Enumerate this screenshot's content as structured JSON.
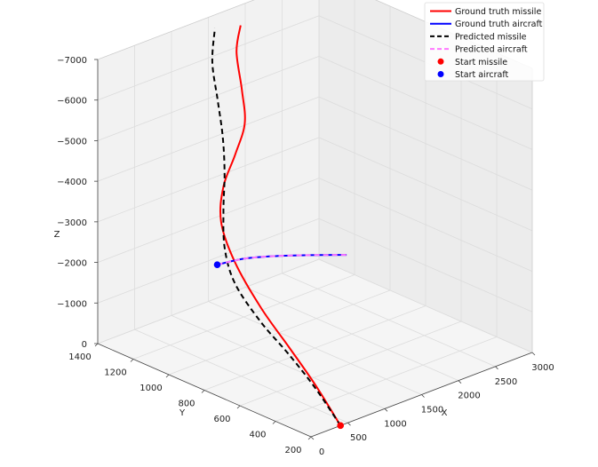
{
  "chart_data": {
    "type": "line",
    "subtype": "3d-trajectory",
    "title": "",
    "axes": {
      "x": {
        "label": "X",
        "ticks": [
          0,
          500,
          1000,
          1500,
          2000,
          2500,
          3000
        ],
        "range": [
          0,
          3000
        ]
      },
      "y": {
        "label": "Y",
        "ticks": [
          200,
          400,
          600,
          800,
          1000,
          1200,
          1400
        ],
        "range": [
          200,
          1400
        ]
      },
      "z": {
        "label": "Z",
        "ticks": [
          0,
          -1000,
          -2000,
          -3000,
          -4000,
          -5000,
          -6000,
          -7000
        ],
        "tick_labels": [
          "0",
          "−1000",
          "−2000",
          "−3000",
          "−4000",
          "−5000",
          "−6000",
          "−7000"
        ],
        "range": [
          0,
          -7000
        ]
      }
    },
    "grid": true,
    "legend_position": "top-right",
    "legend": [
      {
        "label": "Ground truth missile",
        "style": "solid",
        "color": "#ff0000"
      },
      {
        "label": "Ground truth aircraft",
        "style": "solid",
        "color": "#0000ff"
      },
      {
        "label": "Predicted missile",
        "style": "dashed",
        "color": "#000000"
      },
      {
        "label": "Predicted aircraft",
        "style": "dashed",
        "color": "#ff77ff"
      },
      {
        "label": "Start missile",
        "style": "marker",
        "color": "#ff0000"
      },
      {
        "label": "Start aircraft",
        "style": "marker",
        "color": "#0000ff"
      }
    ],
    "series": [
      {
        "name": "Ground truth missile",
        "color": "#ff0000",
        "style": "solid",
        "points": [
          {
            "x": 400,
            "y": 200,
            "z": 0
          },
          {
            "x": 350,
            "y": 320,
            "z": -800
          },
          {
            "x": 310,
            "y": 450,
            "z": -1500
          },
          {
            "x": 290,
            "y": 600,
            "z": -2200
          },
          {
            "x": 320,
            "y": 760,
            "z": -3000
          },
          {
            "x": 420,
            "y": 880,
            "z": -3700
          },
          {
            "x": 620,
            "y": 950,
            "z": -4300
          },
          {
            "x": 900,
            "y": 1000,
            "z": -4800
          },
          {
            "x": 1150,
            "y": 1050,
            "z": -5300
          },
          {
            "x": 1280,
            "y": 1120,
            "z": -5900
          },
          {
            "x": 1400,
            "y": 1200,
            "z": -6600
          },
          {
            "x": 1600,
            "y": 1260,
            "z": -7000
          }
        ]
      },
      {
        "name": "Predicted missile",
        "color": "#000000",
        "style": "dashed",
        "points": [
          {
            "x": 400,
            "y": 200,
            "z": 0
          },
          {
            "x": 370,
            "y": 330,
            "z": -700
          },
          {
            "x": 340,
            "y": 470,
            "z": -1300
          },
          {
            "x": 330,
            "y": 620,
            "z": -1800
          },
          {
            "x": 370,
            "y": 780,
            "z": -2400
          },
          {
            "x": 470,
            "y": 880,
            "z": -3000
          },
          {
            "x": 620,
            "y": 950,
            "z": -3700
          },
          {
            "x": 780,
            "y": 1010,
            "z": -4400
          },
          {
            "x": 900,
            "y": 1070,
            "z": -5100
          },
          {
            "x": 1000,
            "y": 1140,
            "z": -5800
          },
          {
            "x": 1120,
            "y": 1220,
            "z": -6500
          },
          {
            "x": 1300,
            "y": 1280,
            "z": -7100
          }
        ]
      },
      {
        "name": "Ground truth aircraft",
        "color": "#0000ff",
        "style": "solid",
        "points": [
          {
            "x": 1500,
            "y": 1350,
            "z": -1000
          },
          {
            "x": 1800,
            "y": 1320,
            "z": -1000
          },
          {
            "x": 2100,
            "y": 1270,
            "z": -950
          },
          {
            "x": 2400,
            "y": 1200,
            "z": -900
          },
          {
            "x": 2700,
            "y": 1120,
            "z": -850
          }
        ]
      },
      {
        "name": "Predicted aircraft",
        "color": "#ff77ff",
        "style": "dashed",
        "points": [
          {
            "x": 1500,
            "y": 1350,
            "z": -1000
          },
          {
            "x": 1800,
            "y": 1320,
            "z": -1000
          },
          {
            "x": 2100,
            "y": 1270,
            "z": -950
          },
          {
            "x": 2400,
            "y": 1200,
            "z": -900
          },
          {
            "x": 2700,
            "y": 1120,
            "z": -850
          }
        ]
      }
    ],
    "markers": [
      {
        "name": "Start missile",
        "color": "#ff0000",
        "point": {
          "x": 400,
          "y": 200,
          "z": 0
        }
      },
      {
        "name": "Start aircraft",
        "color": "#0000ff",
        "point": {
          "x": 1500,
          "y": 1350,
          "z": -1000
        }
      }
    ]
  }
}
